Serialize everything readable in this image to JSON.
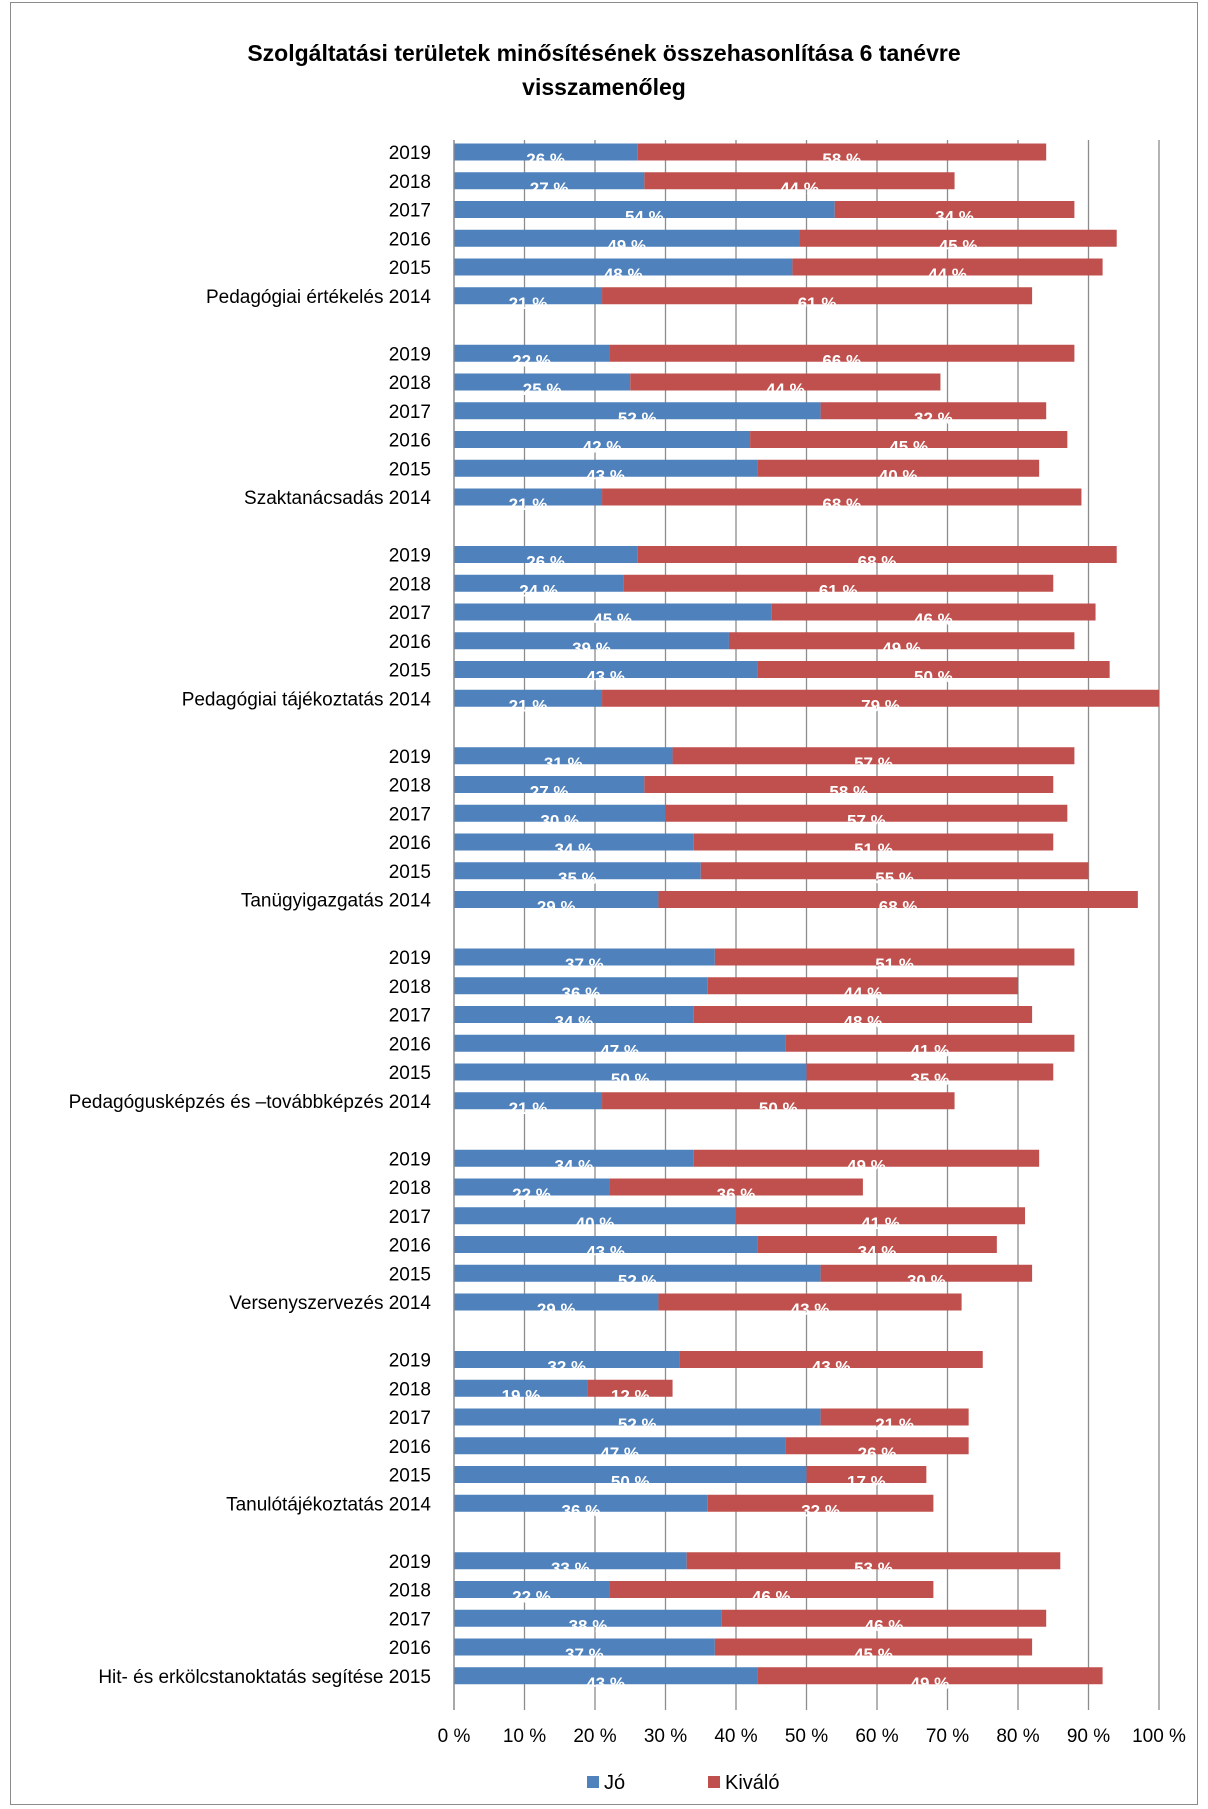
{
  "chart_data": {
    "type": "bar",
    "orientation": "horizontal",
    "stacked": true,
    "title": "Szolgáltatási területek minősítésének összehasonlítása 6 tanévre visszamenőleg",
    "title_lines": [
      "Szolgáltatási területek minősítésének összehasonlítása 6 tanévre",
      "visszamenőleg"
    ],
    "xlim": [
      0,
      100
    ],
    "x_ticks": [
      "0 %",
      "10 %",
      "20 %",
      "30 %",
      "40 %",
      "50 %",
      "60 %",
      "70 %",
      "80 %",
      "90 %",
      "100 %"
    ],
    "grid": "vertical",
    "legend_position": "bottom",
    "series": [
      {
        "name": "Jó",
        "color": "#4f81bd"
      },
      {
        "name": "Kiváló",
        "color": "#c0504d"
      }
    ],
    "groups": [
      {
        "name": "Pedagógiai értékelés",
        "rows": [
          {
            "year": "2019",
            "jo": 26,
            "kivalo": 58
          },
          {
            "year": "2018",
            "jo": 27,
            "kivalo": 44
          },
          {
            "year": "2017",
            "jo": 54,
            "kivalo": 34
          },
          {
            "year": "2016",
            "jo": 49,
            "kivalo": 45
          },
          {
            "year": "2015",
            "jo": 48,
            "kivalo": 44
          },
          {
            "year": "2014",
            "jo": 21,
            "kivalo": 61
          }
        ]
      },
      {
        "name": "Szaktanácsadás",
        "rows": [
          {
            "year": "2019",
            "jo": 22,
            "kivalo": 66
          },
          {
            "year": "2018",
            "jo": 25,
            "kivalo": 44
          },
          {
            "year": "2017",
            "jo": 52,
            "kivalo": 32
          },
          {
            "year": "2016",
            "jo": 42,
            "kivalo": 45
          },
          {
            "year": "2015",
            "jo": 43,
            "kivalo": 40
          },
          {
            "year": "2014",
            "jo": 21,
            "kivalo": 68
          }
        ]
      },
      {
        "name": "Pedagógiai tájékoztatás",
        "rows": [
          {
            "year": "2019",
            "jo": 26,
            "kivalo": 68
          },
          {
            "year": "2018",
            "jo": 24,
            "kivalo": 61
          },
          {
            "year": "2017",
            "jo": 45,
            "kivalo": 46
          },
          {
            "year": "2016",
            "jo": 39,
            "kivalo": 49
          },
          {
            "year": "2015",
            "jo": 43,
            "kivalo": 50
          },
          {
            "year": "2014",
            "jo": 21,
            "kivalo": 79
          }
        ]
      },
      {
        "name": "Tanügyigazgatás",
        "rows": [
          {
            "year": "2019",
            "jo": 31,
            "kivalo": 57
          },
          {
            "year": "2018",
            "jo": 27,
            "kivalo": 58
          },
          {
            "year": "2017",
            "jo": 30,
            "kivalo": 57
          },
          {
            "year": "2016",
            "jo": 34,
            "kivalo": 51
          },
          {
            "year": "2015",
            "jo": 35,
            "kivalo": 55
          },
          {
            "year": "2014",
            "jo": 29,
            "kivalo": 68
          }
        ]
      },
      {
        "name": "Pedagógusképzés és –továbbképzés",
        "rows": [
          {
            "year": "2019",
            "jo": 37,
            "kivalo": 51
          },
          {
            "year": "2018",
            "jo": 36,
            "kivalo": 44
          },
          {
            "year": "2017",
            "jo": 34,
            "kivalo": 48
          },
          {
            "year": "2016",
            "jo": 47,
            "kivalo": 41
          },
          {
            "year": "2015",
            "jo": 50,
            "kivalo": 35
          },
          {
            "year": "2014",
            "jo": 21,
            "kivalo": 50
          }
        ]
      },
      {
        "name": "Versenyszervezés",
        "rows": [
          {
            "year": "2019",
            "jo": 34,
            "kivalo": 49
          },
          {
            "year": "2018",
            "jo": 22,
            "kivalo": 36
          },
          {
            "year": "2017",
            "jo": 40,
            "kivalo": 41
          },
          {
            "year": "2016",
            "jo": 43,
            "kivalo": 34
          },
          {
            "year": "2015",
            "jo": 52,
            "kivalo": 30
          },
          {
            "year": "2014",
            "jo": 29,
            "kivalo": 43
          }
        ]
      },
      {
        "name": "Tanulótájékoztatás",
        "rows": [
          {
            "year": "2019",
            "jo": 32,
            "kivalo": 43
          },
          {
            "year": "2018",
            "jo": 19,
            "kivalo": 12
          },
          {
            "year": "2017",
            "jo": 52,
            "kivalo": 21
          },
          {
            "year": "2016",
            "jo": 47,
            "kivalo": 26
          },
          {
            "year": "2015",
            "jo": 50,
            "kivalo": 17
          },
          {
            "year": "2014",
            "jo": 36,
            "kivalo": 32
          }
        ]
      },
      {
        "name": "Hit- és erkölcstanoktatás segítése",
        "rows": [
          {
            "year": "2019",
            "jo": 33,
            "kivalo": 53
          },
          {
            "year": "2018",
            "jo": 22,
            "kivalo": 46
          },
          {
            "year": "2017",
            "jo": 38,
            "kivalo": 46
          },
          {
            "year": "2016",
            "jo": 37,
            "kivalo": 45
          },
          {
            "year": "2015",
            "jo": 43,
            "kivalo": 49
          }
        ]
      }
    ]
  }
}
